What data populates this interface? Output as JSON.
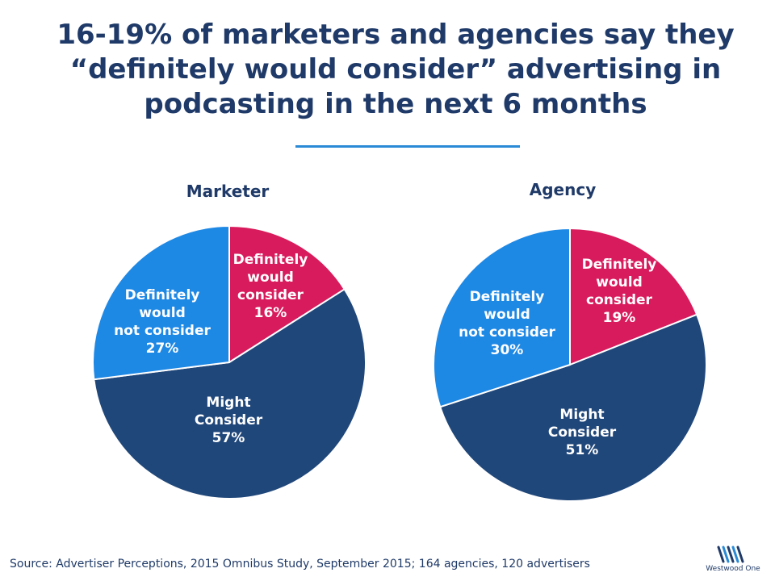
{
  "title": "16-19% of marketers and agencies say they “definitely would consider” advertising in podcasting in the next 6 months",
  "source": "Source: Advertiser Perceptions, 2015 Omnibus Study, September 2015; 164 agencies, 120 advertisers",
  "logo": {
    "text": "Westwood One",
    "icon": "westwood-one-logo"
  },
  "colors": {
    "definitely_would_consider": "#d81b5c",
    "might_consider": "#20477a",
    "definitely_would_not_consider": "#1e88e5",
    "title": "#1f3a68",
    "rule": "#2a8ad6"
  },
  "chart_data": [
    {
      "type": "pie",
      "title": "Marketer",
      "series": [
        {
          "label_lines": [
            "Definitely",
            "would",
            "consider"
          ],
          "value": 16,
          "value_label": "16%",
          "color": "#d81b5c"
        },
        {
          "label_lines": [
            "Might",
            "Consider"
          ],
          "value": 57,
          "value_label": "57%",
          "color": "#20477a"
        },
        {
          "label_lines": [
            "Definitely",
            "would",
            "not consider"
          ],
          "value": 27,
          "value_label": "27%",
          "color": "#1e88e5"
        }
      ]
    },
    {
      "type": "pie",
      "title": "Agency",
      "series": [
        {
          "label_lines": [
            "Definitely",
            "would",
            "consider"
          ],
          "value": 19,
          "value_label": "19%",
          "color": "#d81b5c"
        },
        {
          "label_lines": [
            "Might",
            "Consider"
          ],
          "value": 51,
          "value_label": "51%",
          "color": "#20477a"
        },
        {
          "label_lines": [
            "Definitely",
            "would",
            "not consider"
          ],
          "value": 30,
          "value_label": "30%",
          "color": "#1e88e5"
        }
      ]
    }
  ]
}
